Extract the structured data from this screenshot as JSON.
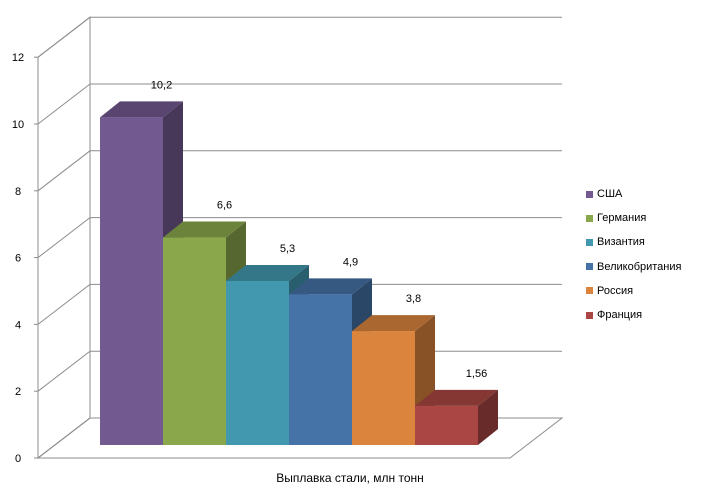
{
  "chart_data": {
    "type": "bar",
    "title": "",
    "xlabel": "Выплавка стали, млн тонн",
    "ylabel": "",
    "ylim": [
      0,
      12
    ],
    "yticks": [
      0,
      2,
      4,
      6,
      8,
      10,
      12
    ],
    "grid": true,
    "three_d": true,
    "legend_position": "right",
    "series": [
      {
        "name": "США",
        "value": 10.2,
        "label": "10,2",
        "color": "#725990"
      },
      {
        "name": "Германия",
        "value": 6.6,
        "label": "6,6",
        "color": "#8aa84b"
      },
      {
        "name": "Византия",
        "value": 5.3,
        "label": "5,3",
        "color": "#4198af"
      },
      {
        "name": "Великобритания",
        "value": 4.9,
        "label": "4,9",
        "color": "#4572a7"
      },
      {
        "name": "Россия",
        "value": 3.8,
        "label": "3,8",
        "color": "#db843d"
      },
      {
        "name": "Франция",
        "value": 1.56,
        "label": "1,56",
        "color": "#aa4643"
      }
    ]
  }
}
